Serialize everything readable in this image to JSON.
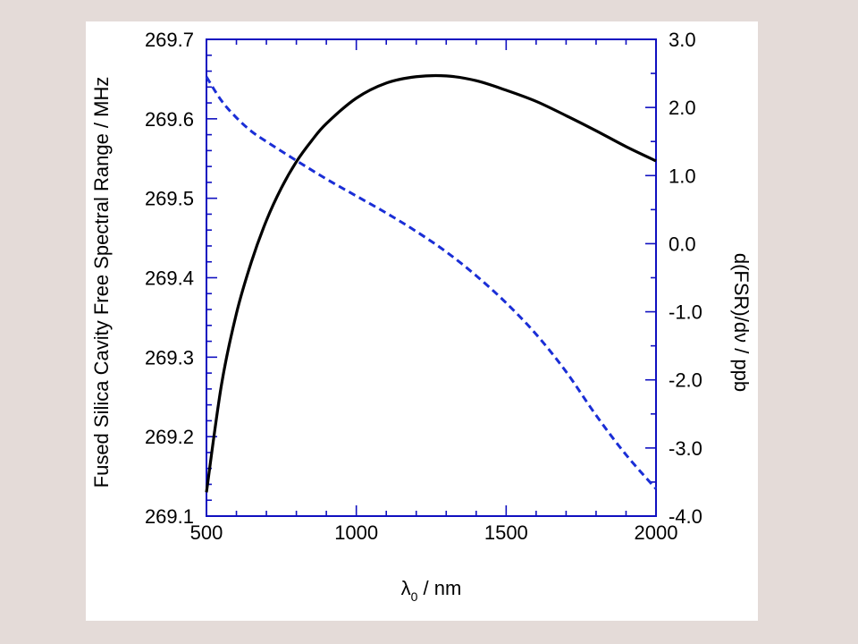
{
  "chart_data": {
    "type": "line",
    "xlabel": {
      "symbol": "λ",
      "subscript": "0",
      "unit": " / nm"
    },
    "ylabel_left": "Fused Silica Cavity Free Spectral Range / MHz",
    "ylabel_right": "d(FSR)/dν / ppb",
    "xlim": [
      500,
      2000
    ],
    "ylim_left": [
      269.1,
      269.7
    ],
    "ylim_right": [
      -4.0,
      3.0
    ],
    "x_ticks": [
      "500",
      "1000",
      "1500",
      "2000"
    ],
    "y_left_ticks": [
      "269.1",
      "269.2",
      "269.3",
      "269.4",
      "269.5",
      "269.6",
      "269.7"
    ],
    "y_right_ticks": [
      "-4.0",
      "-3.0",
      "-2.0",
      "-1.0",
      "0.0",
      "1.0",
      "2.0",
      "3.0"
    ],
    "grid": false,
    "axis_color": "#1010c0",
    "series": [
      {
        "axis": "left",
        "color": "#000000",
        "style": "solid",
        "x": [
          500,
          550,
          600,
          650,
          700,
          750,
          800,
          850,
          900,
          1000,
          1100,
          1200,
          1300,
          1400,
          1500,
          1600,
          1700,
          1800,
          1900,
          2000
        ],
        "y": [
          269.13,
          269.265,
          269.355,
          269.42,
          269.472,
          269.513,
          269.546,
          269.572,
          269.594,
          269.626,
          269.645,
          269.653,
          269.654,
          269.648,
          269.636,
          269.622,
          269.604,
          269.585,
          269.565,
          269.547
        ]
      },
      {
        "axis": "right",
        "color": "#1a2ed6",
        "style": "dashed",
        "x": [
          500,
          550,
          600,
          650,
          700,
          800,
          900,
          1000,
          1100,
          1200,
          1300,
          1400,
          1500,
          1600,
          1700,
          1800,
          1900,
          2000
        ],
        "y": [
          2.45,
          2.1,
          1.85,
          1.65,
          1.5,
          1.22,
          0.95,
          0.7,
          0.45,
          0.18,
          -0.12,
          -0.47,
          -0.87,
          -1.33,
          -1.88,
          -2.52,
          -3.1,
          -3.6
        ]
      }
    ]
  }
}
